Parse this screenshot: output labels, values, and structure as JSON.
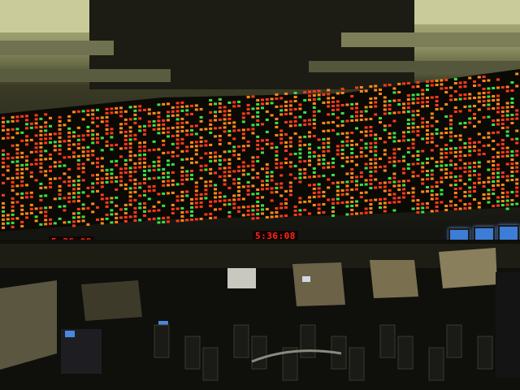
{
  "scene": {
    "description_colors": {
      "ceiling": "#b9bc8a",
      "board_bg": "#0b0904",
      "ticker_red": "#ff3a1c",
      "ticker_orange": "#ff8a1a",
      "ticker_green": "#39e04a",
      "monitor_blue": "#3d7dd6"
    }
  },
  "clocks": {
    "left": "5:36:08",
    "right": "5:36:08"
  }
}
